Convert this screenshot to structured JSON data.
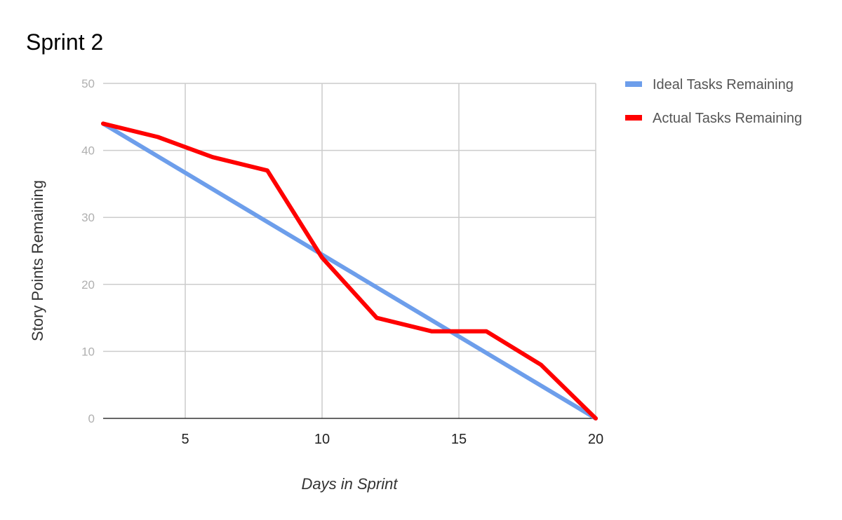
{
  "chart_data": {
    "type": "line",
    "title": "Sprint 2",
    "xlabel": "Days in Sprint",
    "ylabel": "Story Points Remaining",
    "xlim": [
      2,
      20
    ],
    "ylim": [
      0,
      50
    ],
    "x_ticks": [
      "5",
      "10",
      "15",
      "20"
    ],
    "x_tick_values": [
      5,
      10,
      15,
      20
    ],
    "y_ticks": [
      "0",
      "10",
      "20",
      "30",
      "40",
      "50"
    ],
    "y_tick_values": [
      0,
      10,
      20,
      30,
      40,
      50
    ],
    "grid": true,
    "legend_position": "right",
    "series": [
      {
        "name": "Ideal Tasks Remaining",
        "color": "#6d9eeb",
        "points": [
          [
            2,
            44
          ],
          [
            20,
            0
          ]
        ]
      },
      {
        "name": "Actual Tasks Remaining",
        "color": "#ff0000",
        "points": [
          [
            2,
            44
          ],
          [
            4,
            42
          ],
          [
            6,
            39
          ],
          [
            8,
            37
          ],
          [
            10,
            24
          ],
          [
            12,
            15
          ],
          [
            14,
            13
          ],
          [
            16,
            13
          ],
          [
            18,
            8
          ],
          [
            20,
            0
          ]
        ]
      }
    ]
  }
}
